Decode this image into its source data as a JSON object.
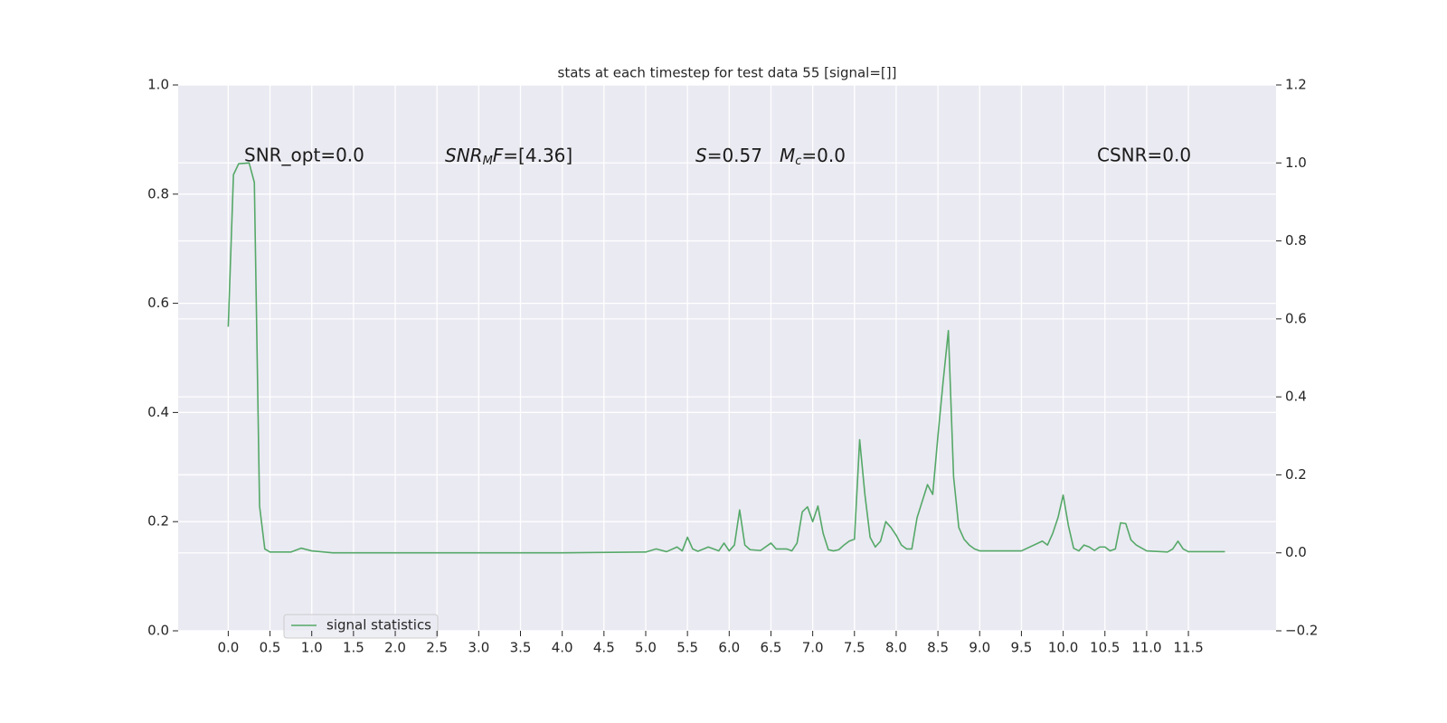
{
  "chart_data": {
    "type": "line",
    "title": "stats at each timestep for test data 55 [signal=[]]",
    "annotations": {
      "snr_opt": "SNR_opt=0.0",
      "snr_mf": [
        "SNR",
        "M",
        "F",
        "=[4.36]"
      ],
      "s": [
        "S",
        "=0.57"
      ],
      "mc": [
        "M",
        "c",
        "=0.0"
      ],
      "csnr": "CSNR=0.0"
    },
    "x": [
      0,
      0.0625,
      0.125,
      0.25,
      0.3125,
      0.375,
      0.4375,
      0.5,
      0.75,
      0.875,
      1.0,
      1.25,
      2.0,
      3.0,
      4.0,
      5.0,
      5.125,
      5.25,
      5.375,
      5.4375,
      5.5,
      5.5625,
      5.625,
      5.75,
      5.875,
      5.9375,
      6.0,
      6.0625,
      6.125,
      6.1875,
      6.25,
      6.375,
      6.5,
      6.5625,
      6.6875,
      6.75,
      6.8125,
      6.875,
      6.9375,
      7.0,
      7.0625,
      7.125,
      7.1875,
      7.25,
      7.3125,
      7.375,
      7.4375,
      7.5,
      7.5625,
      7.625,
      7.6875,
      7.75,
      7.8125,
      7.875,
      7.9375,
      8.0,
      8.0625,
      8.125,
      8.1875,
      8.25,
      8.375,
      8.4375,
      8.5,
      8.5625,
      8.625,
      8.6875,
      8.75,
      8.8125,
      8.875,
      8.9375,
      9.0,
      9.5,
      9.75,
      9.8125,
      9.875,
      9.9375,
      10.0,
      10.0625,
      10.125,
      10.1875,
      10.25,
      10.3125,
      10.375,
      10.4375,
      10.5,
      10.5625,
      10.625,
      10.6875,
      10.75,
      10.8125,
      10.875,
      11.0,
      11.25,
      11.3125,
      11.375,
      11.4375,
      11.5,
      11.9375
    ],
    "series": [
      {
        "name": "signal statistics",
        "color": "#55a868",
        "axis": "y2",
        "values": [
          0.58,
          0.97,
          0.998,
          1.0,
          0.95,
          0.12,
          0.01,
          0.002,
          0.002,
          0.012,
          0.005,
          0.0,
          0.0,
          0.0,
          0.0,
          0.002,
          0.01,
          0.003,
          0.015,
          0.005,
          0.04,
          0.01,
          0.004,
          0.015,
          0.005,
          0.025,
          0.005,
          0.02,
          0.11,
          0.02,
          0.008,
          0.006,
          0.025,
          0.01,
          0.01,
          0.005,
          0.025,
          0.105,
          0.118,
          0.08,
          0.12,
          0.05,
          0.008,
          0.005,
          0.008,
          0.02,
          0.03,
          0.035,
          0.29,
          0.15,
          0.04,
          0.015,
          0.03,
          0.08,
          0.065,
          0.045,
          0.02,
          0.01,
          0.01,
          0.09,
          0.175,
          0.15,
          0.3,
          0.44,
          0.57,
          0.195,
          0.065,
          0.035,
          0.02,
          0.01,
          0.005,
          0.005,
          0.03,
          0.02,
          0.05,
          0.09,
          0.148,
          0.07,
          0.012,
          0.005,
          0.02,
          0.015,
          0.006,
          0.015,
          0.015,
          0.005,
          0.01,
          0.077,
          0.075,
          0.033,
          0.02,
          0.005,
          0.002,
          0.01,
          0.03,
          0.01,
          0.003,
          0.003
        ]
      }
    ],
    "xlim": [
      -0.6,
      12.55
    ],
    "xticks": [
      {
        "value": 0,
        "label": "0.0"
      },
      0.5,
      {
        "value": 1,
        "label": "1.0"
      },
      1.5,
      {
        "value": 2,
        "label": "2.0"
      },
      2.5,
      {
        "value": 3,
        "label": "3.0"
      },
      3.5,
      {
        "value": 4,
        "label": "4.0"
      },
      4.5,
      {
        "value": 5,
        "label": "5.0"
      },
      5.5,
      {
        "value": 6,
        "label": "6.0"
      },
      6.5,
      {
        "value": 7,
        "label": "7.0"
      },
      7.5,
      {
        "value": 8,
        "label": "8.0"
      },
      8.5,
      {
        "value": 9,
        "label": "9.0"
      },
      9.5,
      {
        "value": 10,
        "label": "10.0"
      },
      10.5,
      {
        "value": 11,
        "label": "11.0"
      },
      11.5
    ],
    "ylim": [
      0,
      1
    ],
    "yticks": [
      {
        "value": 0,
        "label": "0.0"
      },
      0.2,
      0.4,
      0.6,
      0.8,
      {
        "value": 1,
        "label": "1.0"
      }
    ],
    "y2lim": [
      -0.2,
      1.2
    ],
    "y2ticks": [
      {
        "value": -0.2,
        "label": "−0.2"
      },
      {
        "value": 0,
        "label": "0.0"
      },
      0.2,
      0.4,
      0.6,
      0.8,
      {
        "value": 1,
        "label": "1.0"
      },
      1.2
    ],
    "grid": true,
    "legend": "lower left"
  }
}
